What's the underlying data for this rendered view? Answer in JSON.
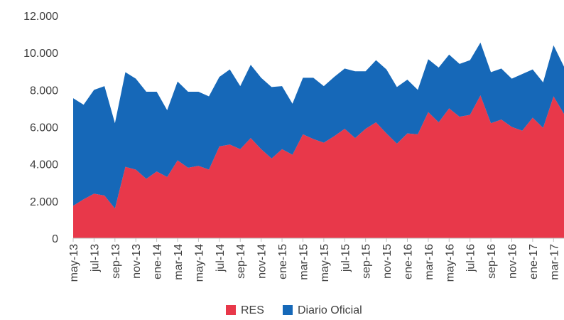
{
  "chart_data": {
    "type": "area",
    "stacked": true,
    "title": "",
    "xlabel": "",
    "ylabel": "",
    "ylim": [
      0,
      12000
    ],
    "y_ticks": [
      0,
      2000,
      4000,
      6000,
      8000,
      10000,
      12000
    ],
    "y_tick_labels": [
      "0",
      "2.000",
      "4.000",
      "6.000",
      "8.000",
      "10.000",
      "12.000"
    ],
    "grid": false,
    "legend_position": "bottom",
    "x": [
      "may-13",
      "jun-13",
      "jul-13",
      "ago-13",
      "sep-13",
      "oct-13",
      "nov-13",
      "dic-13",
      "ene-14",
      "feb-14",
      "mar-14",
      "abr-14",
      "may-14",
      "jun-14",
      "jul-14",
      "ago-14",
      "sep-14",
      "oct-14",
      "nov-14",
      "dic-14",
      "ene-15",
      "feb-15",
      "mar-15",
      "abr-15",
      "may-15",
      "jun-15",
      "jul-15",
      "ago-15",
      "sep-15",
      "oct-15",
      "nov-15",
      "dic-15",
      "ene-16",
      "feb-16",
      "mar-16",
      "abr-16",
      "may-16",
      "jun-16",
      "jul-16",
      "ago-16",
      "sep-16",
      "oct-16",
      "nov-16",
      "dic-16",
      "ene-17",
      "feb-17",
      "mar-17",
      "abr-17"
    ],
    "x_tick_labels": [
      "may-13",
      "jul-13",
      "sep-13",
      "nov-13",
      "ene-14",
      "mar-14",
      "may-14",
      "jul-14",
      "sep-14",
      "nov-14",
      "ene-15",
      "mar-15",
      "may-15",
      "jul-15",
      "sep-15",
      "nov-15",
      "ene-16",
      "mar-16",
      "may-16",
      "jul-16",
      "sep-16",
      "nov-16",
      "ene-17",
      "mar-17"
    ],
    "series": [
      {
        "name": "RES",
        "color": "#e8384a",
        "values": [
          1750,
          2100,
          2400,
          2300,
          1600,
          3850,
          3700,
          3200,
          3600,
          3300,
          4200,
          3800,
          3900,
          3700,
          4950,
          5050,
          4800,
          5400,
          4800,
          4300,
          4800,
          4500,
          5600,
          5350,
          5150,
          5500,
          5900,
          5400,
          5900,
          6250,
          5650,
          5100,
          5650,
          5600,
          6800,
          6250,
          7000,
          6550,
          6650,
          7700,
          6200,
          6400,
          6000,
          5800,
          6500,
          5950,
          7650,
          6700
        ]
      },
      {
        "name": "Diario Oficial",
        "color": "#1668b8",
        "values": [
          5800,
          5100,
          5600,
          5900,
          4600,
          5100,
          4900,
          4700,
          4300,
          3600,
          4250,
          4100,
          4000,
          3950,
          3750,
          4050,
          3400,
          3950,
          3850,
          3850,
          3400,
          2750,
          3050,
          3300,
          3050,
          3200,
          3250,
          3600,
          3100,
          3350,
          3450,
          3050,
          2900,
          2400,
          2850,
          2950,
          2900,
          2850,
          2950,
          2850,
          2750,
          2750,
          2600,
          3050,
          2600,
          2450,
          2750,
          2550
        ]
      }
    ]
  }
}
